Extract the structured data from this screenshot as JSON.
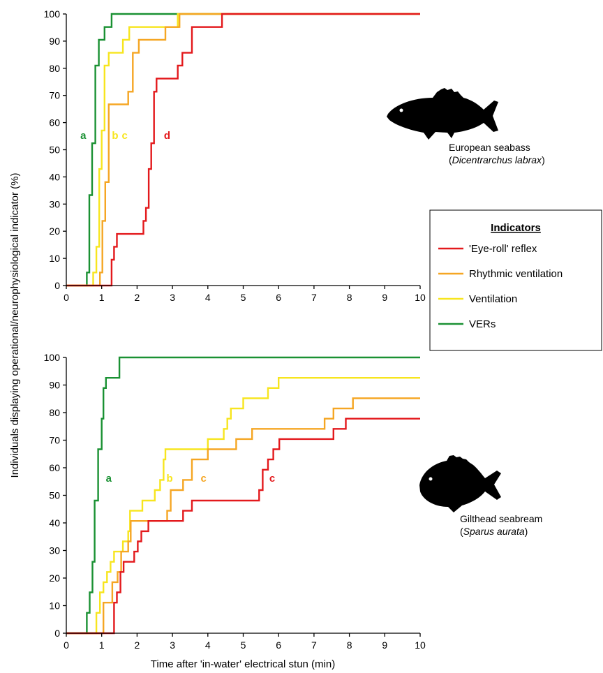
{
  "colors": {
    "eye_roll": "#e3191c",
    "rhythmic_ventilation": "#f5a623",
    "ventilation": "#f7e51e",
    "vers": "#1a9133"
  },
  "ylabel": "Individuals displaying operational/neurophysiological indicator (%)",
  "xlabel": "Time after 'in-water' electrical stun (min)",
  "legend": {
    "title": "Indicators",
    "items": [
      {
        "key": "eye_roll",
        "label": "'Eye-roll' reflex"
      },
      {
        "key": "rhythmic_ventilation",
        "label": "Rhythmic ventilation"
      },
      {
        "key": "ventilation",
        "label": "Ventilation"
      },
      {
        "key": "vers",
        "label": "VERs"
      }
    ]
  },
  "chart_data": [
    {
      "type": "line",
      "step": true,
      "xlim": [
        0,
        10
      ],
      "ylim": [
        0,
        100
      ],
      "x_ticks": [
        "0",
        "1",
        "2",
        "3",
        "4",
        "5",
        "6",
        "7",
        "8",
        "9",
        "10"
      ],
      "y_ticks": [
        "0",
        "10",
        "20",
        "30",
        "40",
        "50",
        "60",
        "70",
        "80",
        "90",
        "100"
      ],
      "species": {
        "common": "European seabass",
        "latin": "Dicentrarchus labrax",
        "paren_open": "(",
        "paren_close": ")"
      },
      "series": [
        {
          "key": "vers",
          "name": "VERs",
          "x": [
            0,
            0.5,
            0.58,
            0.65,
            0.73,
            0.82,
            0.92,
            1.08,
            1.28,
            10
          ],
          "y": [
            0,
            0,
            4.8,
            33.3,
            52.4,
            81,
            90.5,
            95.2,
            100,
            100
          ]
        },
        {
          "key": "ventilation",
          "name": "Ventilation",
          "x": [
            0,
            0.68,
            0.76,
            0.85,
            0.93,
            1.0,
            1.08,
            1.2,
            1.45,
            1.6,
            1.78,
            2.0,
            3.15,
            10
          ],
          "y": [
            0,
            0,
            4.8,
            14.3,
            42.9,
            57.1,
            81,
            85.7,
            85.7,
            90.5,
            95.2,
            95.2,
            100,
            100
          ]
        },
        {
          "key": "rhythmic_ventilation",
          "name": "Rhythmic ventilation",
          "x": [
            0,
            0.88,
            0.95,
            1.02,
            1.1,
            1.2,
            1.55,
            1.75,
            1.88,
            2.05,
            2.8,
            3.2,
            10
          ],
          "y": [
            0,
            0,
            4.8,
            23.8,
            38.1,
            66.7,
            66.7,
            71.4,
            85.7,
            90.5,
            95.2,
            100,
            100
          ]
        },
        {
          "key": "eye_roll",
          "name": "'Eye-roll' reflex",
          "x": [
            0,
            1.2,
            1.28,
            1.35,
            1.43,
            2.1,
            2.18,
            2.25,
            2.33,
            2.4,
            2.48,
            2.55,
            3.15,
            3.28,
            3.55,
            4.4,
            10
          ],
          "y": [
            0,
            0,
            9.5,
            14.3,
            19,
            19,
            23.8,
            28.6,
            42.9,
            52.4,
            71.4,
            76.2,
            81,
            85.7,
            95.2,
            100,
            100
          ]
        }
      ],
      "annotations": [
        {
          "key": "vers",
          "text": "a",
          "x": 0.48,
          "y": 54
        },
        {
          "key": "ventilation",
          "text": "b",
          "x": 1.38,
          "y": 54
        },
        {
          "key": "ventilation",
          "text": "c",
          "x": 1.65,
          "y": 54
        },
        {
          "key": "eye_roll",
          "text": "d",
          "x": 2.85,
          "y": 54
        }
      ]
    },
    {
      "type": "line",
      "step": true,
      "xlim": [
        0,
        10
      ],
      "ylim": [
        0,
        100
      ],
      "x_ticks": [
        "0",
        "1",
        "2",
        "3",
        "4",
        "5",
        "6",
        "7",
        "8",
        "9",
        "10"
      ],
      "y_ticks": [
        "0",
        "10",
        "20",
        "30",
        "40",
        "50",
        "60",
        "70",
        "80",
        "90",
        "100"
      ],
      "species": {
        "common": "Gilthead seabream",
        "latin": "Sparus aurata",
        "paren_open": "(",
        "paren_close": ")"
      },
      "series": [
        {
          "key": "vers",
          "name": "VERs",
          "x": [
            0,
            0.5,
            0.58,
            0.66,
            0.74,
            0.8,
            0.9,
            1.0,
            1.05,
            1.12,
            1.2,
            1.35,
            1.5,
            10
          ],
          "y": [
            0,
            0,
            7.4,
            14.8,
            25.9,
            48.1,
            66.7,
            77.8,
            88.9,
            92.6,
            92.6,
            92.6,
            100,
            100
          ]
        },
        {
          "key": "ventilation",
          "name": "Ventilation",
          "x": [
            0,
            0.78,
            0.85,
            0.95,
            1.05,
            1.15,
            1.25,
            1.35,
            1.6,
            1.75,
            1.8,
            2.0,
            2.15,
            2.5,
            2.65,
            2.75,
            2.8,
            3.65,
            4.0,
            4.45,
            4.55,
            4.65,
            5.0,
            5.7,
            6.0,
            10
          ],
          "y": [
            0,
            0,
            7.4,
            14.8,
            18.5,
            22.2,
            25.9,
            29.6,
            33.3,
            37,
            44.4,
            44.4,
            48.1,
            51.9,
            55.6,
            63,
            66.7,
            66.7,
            70.4,
            74.1,
            77.8,
            81.5,
            85.2,
            88.9,
            92.6,
            92.6
          ]
        },
        {
          "key": "rhythmic_ventilation",
          "name": "Rhythmic ventilation",
          "x": [
            0,
            0.95,
            1.05,
            1.3,
            1.45,
            1.55,
            1.75,
            1.82,
            2.8,
            2.85,
            2.95,
            3.3,
            3.55,
            4.0,
            4.8,
            5.25,
            7.3,
            7.55,
            8.1,
            10
          ],
          "y": [
            0,
            0,
            11.1,
            18.5,
            22.2,
            29.6,
            33.3,
            40.7,
            40.7,
            44.4,
            51.9,
            55.6,
            63,
            66.7,
            70.4,
            74.1,
            77.8,
            81.5,
            85.2,
            85.2
          ]
        },
        {
          "key": "eye_roll",
          "name": "'Eye-roll' reflex",
          "x": [
            0,
            1.3,
            1.35,
            1.43,
            1.53,
            1.62,
            1.92,
            2.02,
            2.12,
            2.22,
            2.32,
            2.5,
            3.3,
            3.55,
            5.45,
            5.55,
            5.7,
            5.85,
            5.95,
            6.02,
            7.55,
            7.9,
            10
          ],
          "y": [
            0,
            0,
            11.1,
            14.8,
            22.2,
            25.9,
            29.6,
            33.3,
            37,
            37,
            40.7,
            40.7,
            44.4,
            48.1,
            51.9,
            59.3,
            63,
            66.7,
            66.7,
            70.4,
            74.1,
            77.8,
            77.8
          ]
        }
      ],
      "annotations": [
        {
          "key": "vers",
          "text": "a",
          "x": 1.2,
          "y": 55
        },
        {
          "key": "ventilation",
          "text": "b",
          "x": 2.92,
          "y": 55
        },
        {
          "key": "rhythmic_ventilation",
          "text": "c",
          "x": 3.88,
          "y": 55
        },
        {
          "key": "eye_roll",
          "text": "c",
          "x": 5.82,
          "y": 55
        }
      ]
    }
  ]
}
